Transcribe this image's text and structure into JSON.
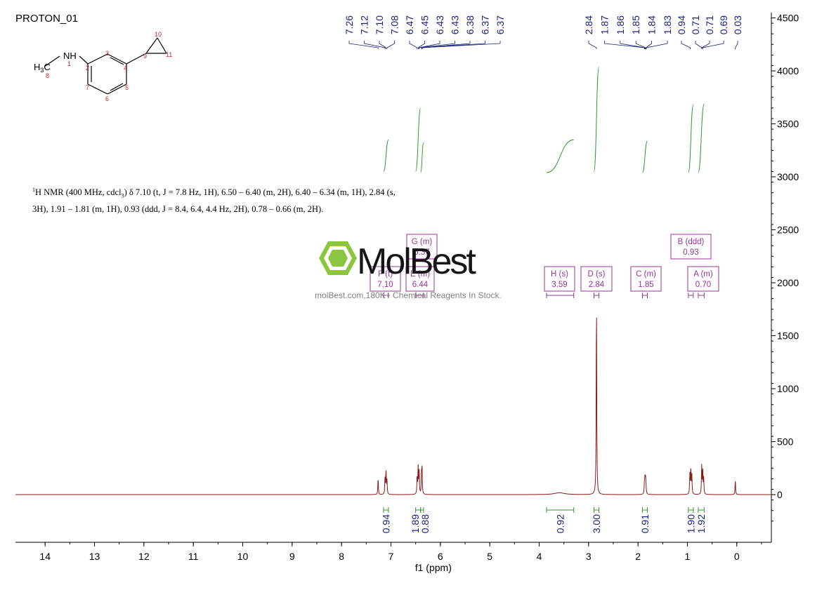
{
  "sample_name": "PROTON_01",
  "nmr_description": {
    "nucleus_sup": "1",
    "line1_rest": "H NMR (400 MHz, cdcl",
    "solvent_sub": "3",
    "line1_tail": ") δ 7.10 (t, J = 7.8 Hz, 1H), 6.50 – 6.40 (m, 2H), 6.40 – 6.34 (m, 1H), 2.84 (s,",
    "line2": "3H), 1.91 – 1.81 (m, 1H), 0.93 (ddd, J = 8.4, 6.4, 4.4 Hz, 2H), 0.78 – 0.66 (m, 2H)."
  },
  "watermark": {
    "brand": "MolBest",
    "tagline": "molBest.com,180K+ Chemical Reagents In Stock."
  },
  "structure": {
    "group_label": "NH",
    "methyl_label": "H3C",
    "atom_numbers": [
      "1",
      "2",
      "3",
      "4",
      "5",
      "6",
      "7",
      "8",
      "9",
      "10",
      "11"
    ]
  },
  "colors": {
    "spectrum": "#8b1a1a",
    "peak_labels": "#1a237e",
    "integral_curve": "#2e9b2e",
    "integral_labels": "#1a237e",
    "multiplet_boxes": "#993399",
    "atom_numbers": "#cc2222",
    "axis": "#000000"
  },
  "chart_data": {
    "type": "line",
    "xlabel": "f1 (ppm)",
    "ylabel": "",
    "x_reversed": true,
    "xlim": [
      14.6,
      -0.7
    ],
    "ylim": [
      -450,
      4550
    ],
    "x_ticks": [
      14,
      13,
      12,
      11,
      10,
      9,
      8,
      7,
      6,
      5,
      4,
      3,
      2,
      1,
      0
    ],
    "y_ticks": [
      0,
      500,
      1000,
      1500,
      2000,
      2500,
      3000,
      3500,
      4000,
      4500
    ],
    "y_tick_labels": [
      "0",
      "500",
      "1000",
      "1500",
      "2000",
      "2500",
      "3000",
      "3500",
      "4000",
      "4500"
    ],
    "peak_labels": [
      "7.26",
      "7.12",
      "7.10",
      "7.08",
      "6.47",
      "6.45",
      "6.43",
      "6.43",
      "6.38",
      "6.37",
      "6.37",
      "2.84",
      "1.87",
      "1.86",
      "1.85",
      "1.84",
      "1.83",
      "0.94",
      "0.71",
      "0.71",
      "0.69",
      "0.03"
    ],
    "spectrum_peaks": [
      {
        "ppm": 7.26,
        "height": 160,
        "width": 0.006
      },
      {
        "ppm": 7.12,
        "height": 150,
        "width": 0.006
      },
      {
        "ppm": 7.1,
        "height": 230,
        "width": 0.006
      },
      {
        "ppm": 7.08,
        "height": 130,
        "width": 0.006
      },
      {
        "ppm": 6.47,
        "height": 170,
        "width": 0.006
      },
      {
        "ppm": 6.45,
        "height": 250,
        "width": 0.006
      },
      {
        "ppm": 6.43,
        "height": 240,
        "width": 0.006
      },
      {
        "ppm": 6.38,
        "height": 190,
        "width": 0.006
      },
      {
        "ppm": 6.37,
        "height": 220,
        "width": 0.006
      },
      {
        "ppm": 3.59,
        "height": 18,
        "width": 0.12
      },
      {
        "ppm": 2.84,
        "height": 1900,
        "width": 0.006
      },
      {
        "ppm": 1.87,
        "height": 90,
        "width": 0.006
      },
      {
        "ppm": 1.86,
        "height": 120,
        "width": 0.006
      },
      {
        "ppm": 1.85,
        "height": 130,
        "width": 0.006
      },
      {
        "ppm": 1.84,
        "height": 110,
        "width": 0.006
      },
      {
        "ppm": 0.95,
        "height": 190,
        "width": 0.006
      },
      {
        "ppm": 0.93,
        "height": 250,
        "width": 0.006
      },
      {
        "ppm": 0.91,
        "height": 180,
        "width": 0.006
      },
      {
        "ppm": 0.71,
        "height": 270,
        "width": 0.006
      },
      {
        "ppm": 0.69,
        "height": 240,
        "width": 0.006
      },
      {
        "ppm": 0.67,
        "height": 150,
        "width": 0.006
      },
      {
        "ppm": 0.03,
        "height": 140,
        "width": 0.006
      }
    ],
    "integrals": [
      {
        "from": 7.15,
        "to": 7.05,
        "value": "0.94"
      },
      {
        "from": 6.5,
        "to": 6.4,
        "value": "1.89"
      },
      {
        "from": 6.4,
        "to": 6.34,
        "value": "0.88"
      },
      {
        "from": 3.85,
        "to": 3.3,
        "value": "0.92"
      },
      {
        "from": 2.89,
        "to": 2.79,
        "value": "3.00"
      },
      {
        "from": 1.91,
        "to": 1.81,
        "value": "0.91"
      },
      {
        "from": 0.98,
        "to": 0.88,
        "value": "1.90"
      },
      {
        "from": 0.78,
        "to": 0.66,
        "value": "1.92"
      }
    ],
    "multiplets": [
      {
        "letter": "F",
        "type": "t",
        "shift": "7.10"
      },
      {
        "letter": "E",
        "type": "m",
        "shift": "6.44"
      },
      {
        "letter": "G",
        "type": "m",
        "shift": "6.37"
      },
      {
        "letter": "H",
        "type": "s",
        "shift": "3.59"
      },
      {
        "letter": "D",
        "type": "s",
        "shift": "2.84"
      },
      {
        "letter": "C",
        "type": "m",
        "shift": "1.85"
      },
      {
        "letter": "B",
        "type": "ddd",
        "shift": "0.93"
      },
      {
        "letter": "A",
        "type": "m",
        "shift": "0.70"
      }
    ]
  }
}
